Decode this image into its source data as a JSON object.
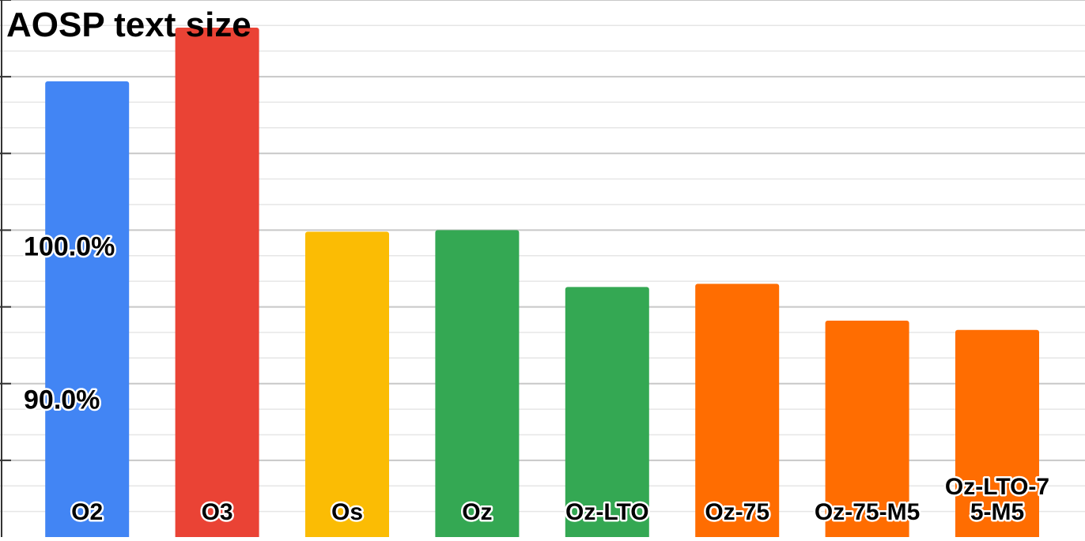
{
  "chart_data": {
    "type": "bar",
    "title": "AOSP text size",
    "categories": [
      "O2",
      "O3",
      "Os",
      "Oz",
      "Oz-LTO",
      "Oz-75",
      "Oz-75-M5",
      "Oz-LTO-75-M5"
    ],
    "category_label_lines": [
      [
        "O2"
      ],
      [
        "O3"
      ],
      [
        "Os"
      ],
      [
        "Oz"
      ],
      [
        "Oz-LTO"
      ],
      [
        "Oz-75"
      ],
      [
        "Oz-75-M5"
      ],
      [
        "Oz-LTO-7",
        "5-M5"
      ]
    ],
    "values": [
      109.7,
      113.2,
      99.9,
      100.0,
      96.3,
      96.5,
      94.1,
      93.5
    ],
    "colors": [
      "#4285F4",
      "#EA4335",
      "#FBBC04",
      "#34A853",
      "#34A853",
      "#FF6D01",
      "#FF6D01",
      "#FF6D01"
    ],
    "y_tick_labels": [
      {
        "value": 90,
        "label": "90.0%"
      },
      {
        "value": 100,
        "label": "100.0%"
      }
    ],
    "ylim": [
      80.0,
      115.0
    ],
    "y_major_ticks": [
      85,
      90,
      95,
      100,
      105,
      110,
      115
    ],
    "y_minor_step": 1.667,
    "grid": true,
    "legend": "none",
    "xlabel": "",
    "ylabel": ""
  }
}
